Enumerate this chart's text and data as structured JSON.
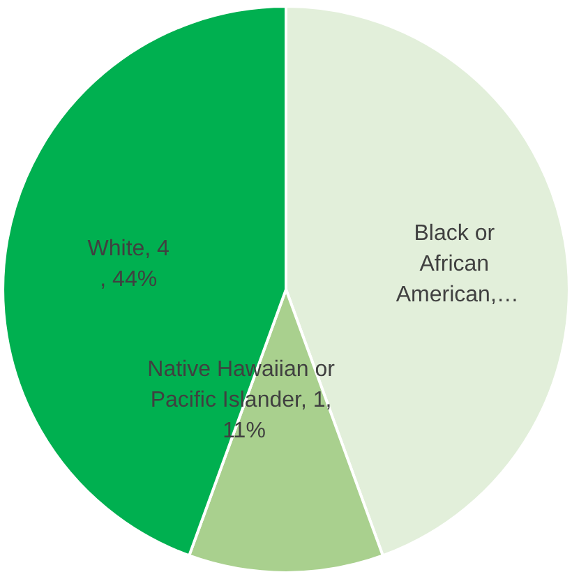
{
  "chart_data": {
    "type": "pie",
    "categories": [
      "Black or African American",
      "Native Hawaiian or Pacific Islander",
      "White"
    ],
    "values": [
      4,
      1,
      4
    ],
    "colors": [
      "#e2efda",
      "#a9d08e",
      "#00b050"
    ],
    "value_labels": [
      ",…",
      ", 1, 11%",
      ", 4, 44%"
    ]
  }
}
